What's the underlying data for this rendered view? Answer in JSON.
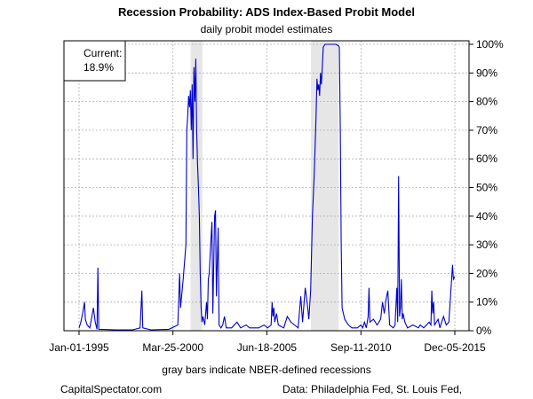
{
  "header": {
    "title": "Recession Probability: ADS Index-Based Probit Model",
    "subtitle": "daily probit model estimates"
  },
  "footer": {
    "note": "gray bars indicate NBER-defined recessions",
    "credit": "CapitalSpectator.com",
    "source": "Data: Philadelphia Fed, St. Louis Fed,"
  },
  "current_box": {
    "label": "Current:",
    "value": "18.9%"
  },
  "colors": {
    "line": "#0000cc",
    "recession": "#e6e6e6",
    "grid": "#b0b0b0"
  },
  "chart_data": {
    "type": "line",
    "title": "Recession Probability: ADS Index-Based Probit Model",
    "subtitle": "daily probit model estimates",
    "xlabel": "",
    "ylabel": "",
    "xlim": [
      1995.0,
      2015.93
    ],
    "ylim": [
      0,
      100
    ],
    "y_ticks": [
      0,
      10,
      20,
      30,
      40,
      50,
      60,
      70,
      80,
      90,
      100
    ],
    "y_tick_labels": [
      "0%",
      "10%",
      "20%",
      "30%",
      "40%",
      "50%",
      "60%",
      "70%",
      "80%",
      "90%",
      "100%"
    ],
    "x_ticks": [
      {
        "x": 1995.0,
        "label": "Jan-01-1995"
      },
      {
        "x": 2000.23,
        "label": "Mar-25-2000"
      },
      {
        "x": 2005.46,
        "label": "Jun-18-2005"
      },
      {
        "x": 2010.7,
        "label": "Sep-11-2010"
      },
      {
        "x": 2015.93,
        "label": "Dec-05-2015"
      }
    ],
    "grid": true,
    "recessions": [
      {
        "start": 2001.21,
        "end": 2001.87
      },
      {
        "start": 2007.92,
        "end": 2009.46
      }
    ],
    "series": [
      {
        "values": [
          [
            1995.0,
            1
          ],
          [
            1995.1,
            3
          ],
          [
            1995.2,
            6
          ],
          [
            1995.3,
            10
          ],
          [
            1995.35,
            4
          ],
          [
            1995.45,
            2
          ],
          [
            1995.6,
            1
          ],
          [
            1995.8,
            8
          ],
          [
            1995.9,
            3
          ],
          [
            1996.0,
            0.5
          ],
          [
            1996.05,
            22
          ],
          [
            1996.1,
            0.5
          ],
          [
            1997.0,
            0.3
          ],
          [
            1998.0,
            0.3
          ],
          [
            1998.4,
            1
          ],
          [
            1998.5,
            14
          ],
          [
            1998.55,
            1
          ],
          [
            1999.0,
            0.3
          ],
          [
            2000.0,
            0.5
          ],
          [
            2000.5,
            2
          ],
          [
            2000.6,
            20
          ],
          [
            2000.65,
            8
          ],
          [
            2000.8,
            18
          ],
          [
            2000.95,
            30
          ],
          [
            2001.0,
            70
          ],
          [
            2001.05,
            75
          ],
          [
            2001.1,
            82
          ],
          [
            2001.15,
            78
          ],
          [
            2001.2,
            84
          ],
          [
            2001.25,
            70
          ],
          [
            2001.3,
            86
          ],
          [
            2001.35,
            60
          ],
          [
            2001.4,
            92
          ],
          [
            2001.45,
            80
          ],
          [
            2001.5,
            95
          ],
          [
            2001.55,
            70
          ],
          [
            2001.6,
            58
          ],
          [
            2001.65,
            50
          ],
          [
            2001.7,
            40
          ],
          [
            2001.75,
            20
          ],
          [
            2001.8,
            8
          ],
          [
            2001.85,
            3
          ],
          [
            2001.9,
            5
          ],
          [
            2002.0,
            2
          ],
          [
            2002.1,
            10
          ],
          [
            2002.15,
            4
          ],
          [
            2002.2,
            18
          ],
          [
            2002.25,
            20
          ],
          [
            2002.35,
            32
          ],
          [
            2002.4,
            38
          ],
          [
            2002.45,
            6
          ],
          [
            2002.55,
            40
          ],
          [
            2002.6,
            42
          ],
          [
            2002.65,
            12
          ],
          [
            2002.75,
            36
          ],
          [
            2002.8,
            2
          ],
          [
            2002.9,
            1
          ],
          [
            2003.0,
            2
          ],
          [
            2003.1,
            5
          ],
          [
            2003.2,
            1
          ],
          [
            2003.5,
            1
          ],
          [
            2003.8,
            3
          ],
          [
            2004.0,
            1
          ],
          [
            2004.3,
            2
          ],
          [
            2004.5,
            1
          ],
          [
            2005.0,
            1
          ],
          [
            2005.3,
            2
          ],
          [
            2005.5,
            1
          ],
          [
            2005.7,
            2
          ],
          [
            2005.75,
            10
          ],
          [
            2005.8,
            5
          ],
          [
            2005.85,
            8
          ],
          [
            2005.9,
            3
          ],
          [
            2006.0,
            6
          ],
          [
            2006.1,
            2
          ],
          [
            2006.4,
            1
          ],
          [
            2006.6,
            5
          ],
          [
            2006.8,
            3
          ],
          [
            2007.0,
            2
          ],
          [
            2007.2,
            1
          ],
          [
            2007.35,
            12
          ],
          [
            2007.45,
            3
          ],
          [
            2007.6,
            15
          ],
          [
            2007.7,
            10
          ],
          [
            2007.8,
            4
          ],
          [
            2007.9,
            14
          ],
          [
            2008.0,
            40
          ],
          [
            2008.1,
            55
          ],
          [
            2008.2,
            75
          ],
          [
            2008.25,
            88
          ],
          [
            2008.3,
            84
          ],
          [
            2008.35,
            86
          ],
          [
            2008.4,
            82
          ],
          [
            2008.45,
            90
          ],
          [
            2008.5,
            86
          ],
          [
            2008.55,
            92
          ],
          [
            2008.6,
            99
          ],
          [
            2008.7,
            100
          ],
          [
            2009.0,
            100
          ],
          [
            2009.3,
            100
          ],
          [
            2009.45,
            99.5
          ],
          [
            2009.5,
            99
          ],
          [
            2009.55,
            70
          ],
          [
            2009.6,
            30
          ],
          [
            2009.65,
            8
          ],
          [
            2009.8,
            4
          ],
          [
            2009.9,
            3
          ],
          [
            2010.0,
            2
          ],
          [
            2010.2,
            1
          ],
          [
            2010.5,
            1
          ],
          [
            2010.7,
            2
          ],
          [
            2010.8,
            1
          ],
          [
            2010.9,
            3
          ],
          [
            2011.0,
            1
          ],
          [
            2011.1,
            5
          ],
          [
            2011.15,
            15
          ],
          [
            2011.2,
            3
          ],
          [
            2011.4,
            4
          ],
          [
            2011.6,
            2
          ],
          [
            2011.8,
            4
          ],
          [
            2011.9,
            10
          ],
          [
            2012.0,
            6
          ],
          [
            2012.1,
            11
          ],
          [
            2012.2,
            14
          ],
          [
            2012.25,
            8
          ],
          [
            2012.3,
            2
          ],
          [
            2012.5,
            1
          ],
          [
            2012.6,
            2
          ],
          [
            2012.7,
            15
          ],
          [
            2012.75,
            3
          ],
          [
            2012.8,
            54
          ],
          [
            2012.85,
            5
          ],
          [
            2012.9,
            8
          ],
          [
            2012.95,
            18
          ],
          [
            2013.0,
            4
          ],
          [
            2013.05,
            6
          ],
          [
            2013.15,
            3
          ],
          [
            2013.3,
            1
          ],
          [
            2013.6,
            2
          ],
          [
            2013.9,
            1
          ],
          [
            2014.0,
            2
          ],
          [
            2014.2,
            1
          ],
          [
            2014.5,
            3
          ],
          [
            2014.6,
            2
          ],
          [
            2014.65,
            14
          ],
          [
            2014.7,
            6
          ],
          [
            2014.75,
            10
          ],
          [
            2014.8,
            2
          ],
          [
            2015.0,
            4
          ],
          [
            2015.1,
            1
          ],
          [
            2015.2,
            3
          ],
          [
            2015.3,
            5
          ],
          [
            2015.45,
            2
          ],
          [
            2015.6,
            3
          ],
          [
            2015.75,
            18
          ],
          [
            2015.8,
            23
          ],
          [
            2015.85,
            18
          ],
          [
            2015.93,
            18.9
          ]
        ]
      }
    ]
  }
}
